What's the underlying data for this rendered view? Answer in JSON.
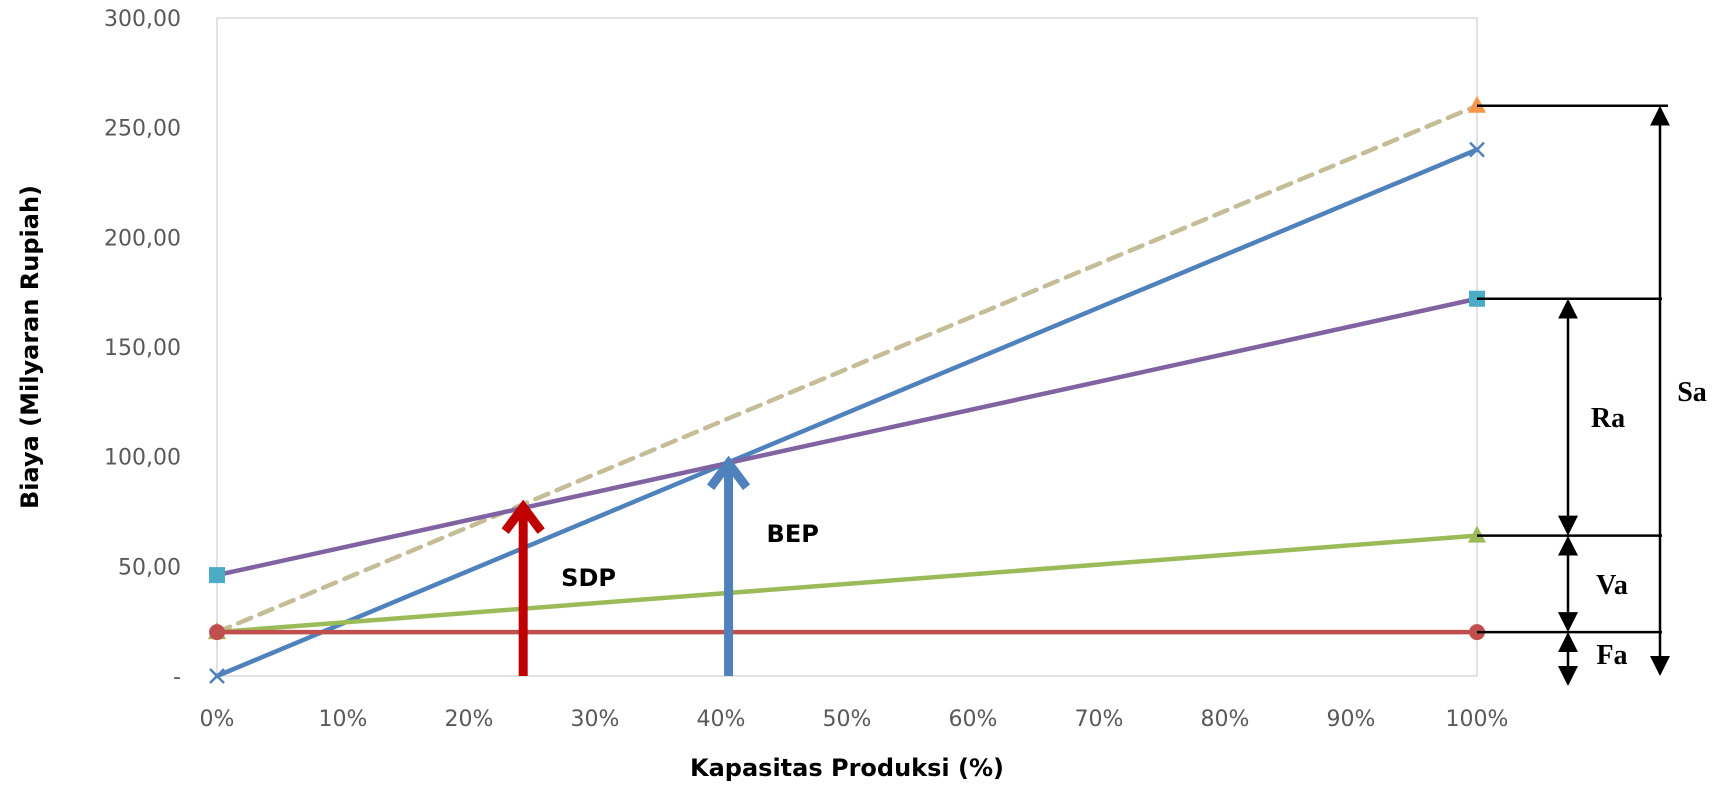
{
  "chart_data": {
    "type": "line",
    "title": "",
    "xlabel": "Kapasitas Produksi (%)",
    "ylabel": "Biaya (Milyaran Rupiah)",
    "x": [
      0,
      100
    ],
    "xlim": [
      0,
      100
    ],
    "ylim": [
      0,
      300
    ],
    "x_ticks": [
      0,
      10,
      20,
      30,
      40,
      50,
      60,
      70,
      80,
      90,
      100
    ],
    "x_tick_labels": [
      "0%",
      "10%",
      "20%",
      "30%",
      "40%",
      "50%",
      "60%",
      "70%",
      "80%",
      "90%",
      "100%"
    ],
    "y_ticks": [
      0,
      50,
      100,
      150,
      200,
      250,
      300
    ],
    "y_tick_labels": [
      "-",
      "50,00",
      "100,00",
      "150,00",
      "200,00",
      "250,00",
      "300,00"
    ],
    "grid": false,
    "legend": "none",
    "series": [
      {
        "id": "sales",
        "values": [
          0,
          240
        ],
        "color": "#4F81BD",
        "marker": "x",
        "dash": false
      },
      {
        "id": "semi-variable",
        "values": [
          20,
          260
        ],
        "color": "#C4BD97",
        "marker": "triangle",
        "marker_color": "#F79646",
        "dash": true
      },
      {
        "id": "total-cost",
        "values": [
          46,
          172
        ],
        "color": "#8064A2",
        "marker": "square",
        "marker_color": "#4BACC6",
        "dash": false
      },
      {
        "id": "variable",
        "values": [
          20,
          64
        ],
        "color": "#9BBB59",
        "marker": "triangle",
        "dash": false
      },
      {
        "id": "fixed",
        "values": [
          20,
          20
        ],
        "color": "#C0504D",
        "marker": "circle",
        "dash": false
      }
    ],
    "annotations": [
      {
        "label": "SDP",
        "x": 24.3,
        "y": 77,
        "color": "#C00000"
      },
      {
        "label": "BEP",
        "x": 40.6,
        "y": 97,
        "color": "#4F81BD"
      }
    ],
    "dimension_brackets": [
      {
        "label": "Sa",
        "from": 0,
        "to": 260
      },
      {
        "label": "Ra",
        "from": 64,
        "to": 172
      },
      {
        "label": "Va",
        "from": 20,
        "to": 64
      },
      {
        "label": "Fa",
        "from": 0,
        "to": 20
      }
    ]
  }
}
